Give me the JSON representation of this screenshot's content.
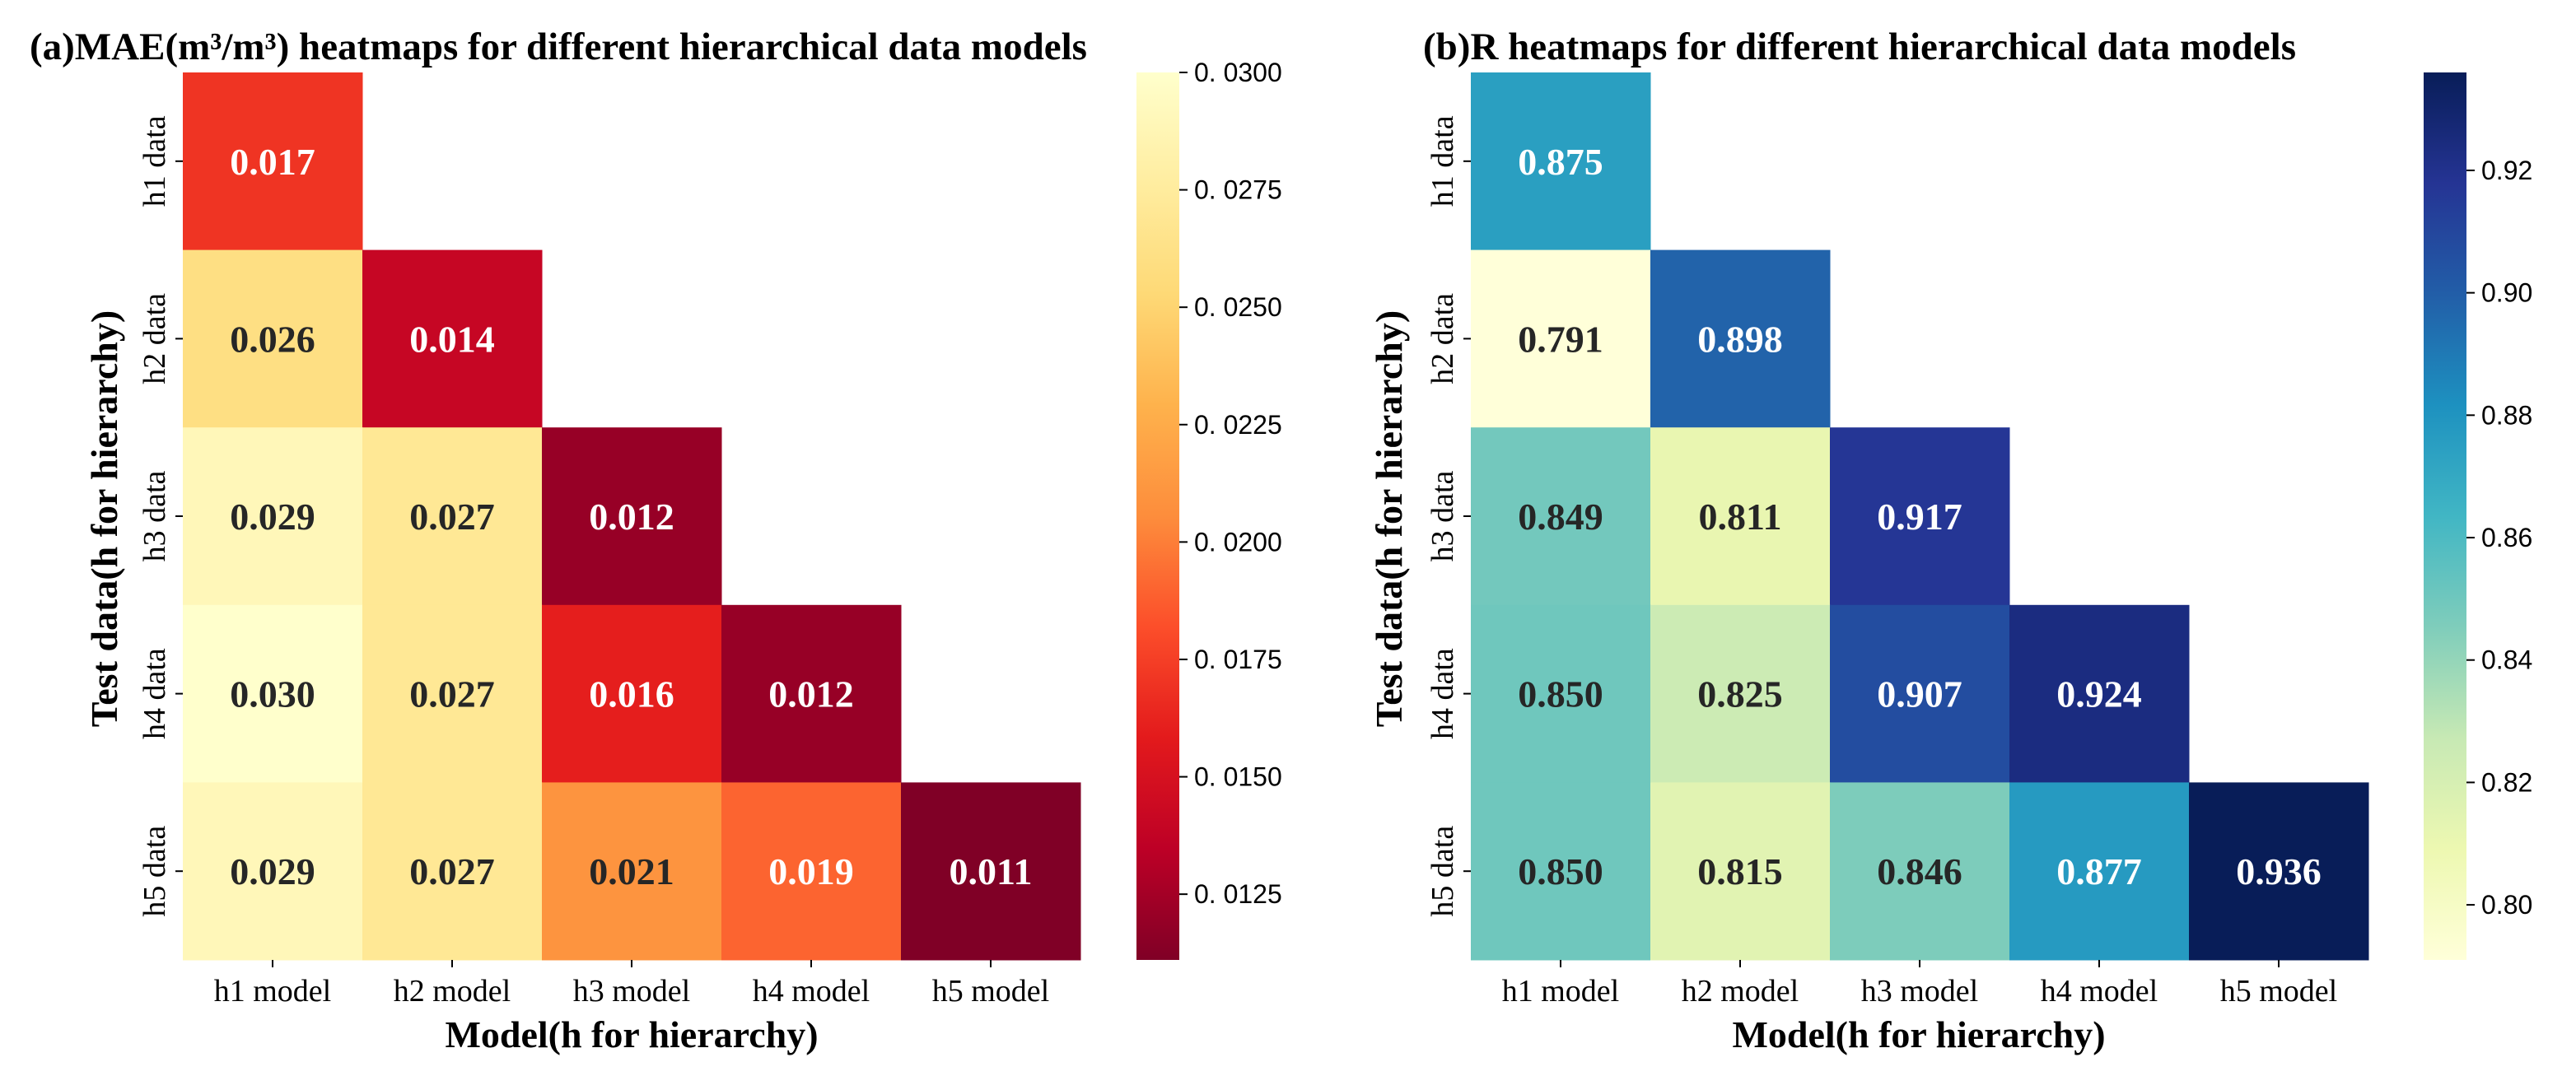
{
  "chart_data": [
    {
      "type": "heatmap",
      "title": "(a)MAE(m³/m³) heatmaps for different hierarchical data models",
      "xlabel": "Model(h for hierarchy)",
      "ylabel": "Test data(h for hierarchy)",
      "x_categories": [
        "h1 model",
        "h2 model",
        "h3 model",
        "h4 model",
        "h5 model"
      ],
      "y_categories": [
        "h1 data",
        "h2 data",
        "h3 data",
        "h4 data",
        "h5 data"
      ],
      "values": [
        [
          0.017,
          null,
          null,
          null,
          null
        ],
        [
          0.026,
          0.014,
          null,
          null,
          null
        ],
        [
          0.029,
          0.027,
          0.012,
          null,
          null
        ],
        [
          0.03,
          0.027,
          0.016,
          0.012,
          null
        ],
        [
          0.029,
          0.027,
          0.021,
          0.019,
          0.011
        ]
      ],
      "value_labels": [
        [
          "0.017",
          "",
          "",
          "",
          ""
        ],
        [
          "0.026",
          "0.014",
          "",
          "",
          ""
        ],
        [
          "0.029",
          "0.027",
          "0.012",
          "",
          ""
        ],
        [
          "0.030",
          "0.027",
          "0.016",
          "0.012",
          ""
        ],
        [
          "0.029",
          "0.027",
          "0.021",
          "0.019",
          "0.011"
        ]
      ],
      "colormap": "YlOrRd_r",
      "color_stops": [
        "#800026",
        "#bd0026",
        "#e31a1c",
        "#fc4e2a",
        "#fd8d3c",
        "#feb24c",
        "#fed976",
        "#ffeda0",
        "#ffffcc"
      ],
      "vmin": 0.0111,
      "vmax": 0.03,
      "colorbar_ticks": [
        0.0125,
        0.015,
        0.0175,
        0.02,
        0.0225,
        0.025,
        0.0275,
        0.03
      ],
      "colorbar_tick_labels": [
        "0. 0125",
        "0. 0150",
        "0. 0175",
        "0. 0200",
        "0. 0225",
        "0. 0250",
        "0. 0275",
        "0. 0300"
      ],
      "annot_threshold": 0.02,
      "annot_dark_color": "#262626",
      "annot_light_color": "#ffffff"
    },
    {
      "type": "heatmap",
      "title": "(b)R heatmaps for different hierarchical data models",
      "xlabel": "Model(h for hierarchy)",
      "ylabel": "Test data(h for hierarchy)",
      "x_categories": [
        "h1 model",
        "h2 model",
        "h3 model",
        "h4 model",
        "h5 model"
      ],
      "y_categories": [
        "h1 data",
        "h2 data",
        "h3 data",
        "h4 data",
        "h5 data"
      ],
      "values": [
        [
          0.875,
          null,
          null,
          null,
          null
        ],
        [
          0.791,
          0.898,
          null,
          null,
          null
        ],
        [
          0.849,
          0.811,
          0.917,
          null,
          null
        ],
        [
          0.85,
          0.825,
          0.907,
          0.924,
          null
        ],
        [
          0.85,
          0.815,
          0.846,
          0.877,
          0.936
        ]
      ],
      "value_labels": [
        [
          "0.875",
          "",
          "",
          "",
          ""
        ],
        [
          "0.791",
          "0.898",
          "",
          "",
          ""
        ],
        [
          "0.849",
          "0.811",
          "0.917",
          "",
          ""
        ],
        [
          "0.850",
          "0.825",
          "0.907",
          "0.924",
          ""
        ],
        [
          "0.850",
          "0.815",
          "0.846",
          "0.877",
          "0.936"
        ]
      ],
      "colormap": "YlGnBu",
      "color_stops": [
        "#ffffd9",
        "#edf8b1",
        "#c7e9b4",
        "#7fcdbb",
        "#41b6c4",
        "#1d91c0",
        "#225ea8",
        "#253494",
        "#081d58"
      ],
      "vmin": 0.791,
      "vmax": 0.936,
      "colorbar_ticks": [
        0.8,
        0.82,
        0.84,
        0.86,
        0.88,
        0.9,
        0.92
      ],
      "colorbar_tick_labels": [
        "0.80",
        "0.82",
        "0.84",
        "0.86",
        "0.88",
        "0.90",
        "0.92"
      ],
      "annot_threshold": 0.87,
      "annot_dark_color": "#262626",
      "annot_light_color": "#ffffff"
    }
  ]
}
